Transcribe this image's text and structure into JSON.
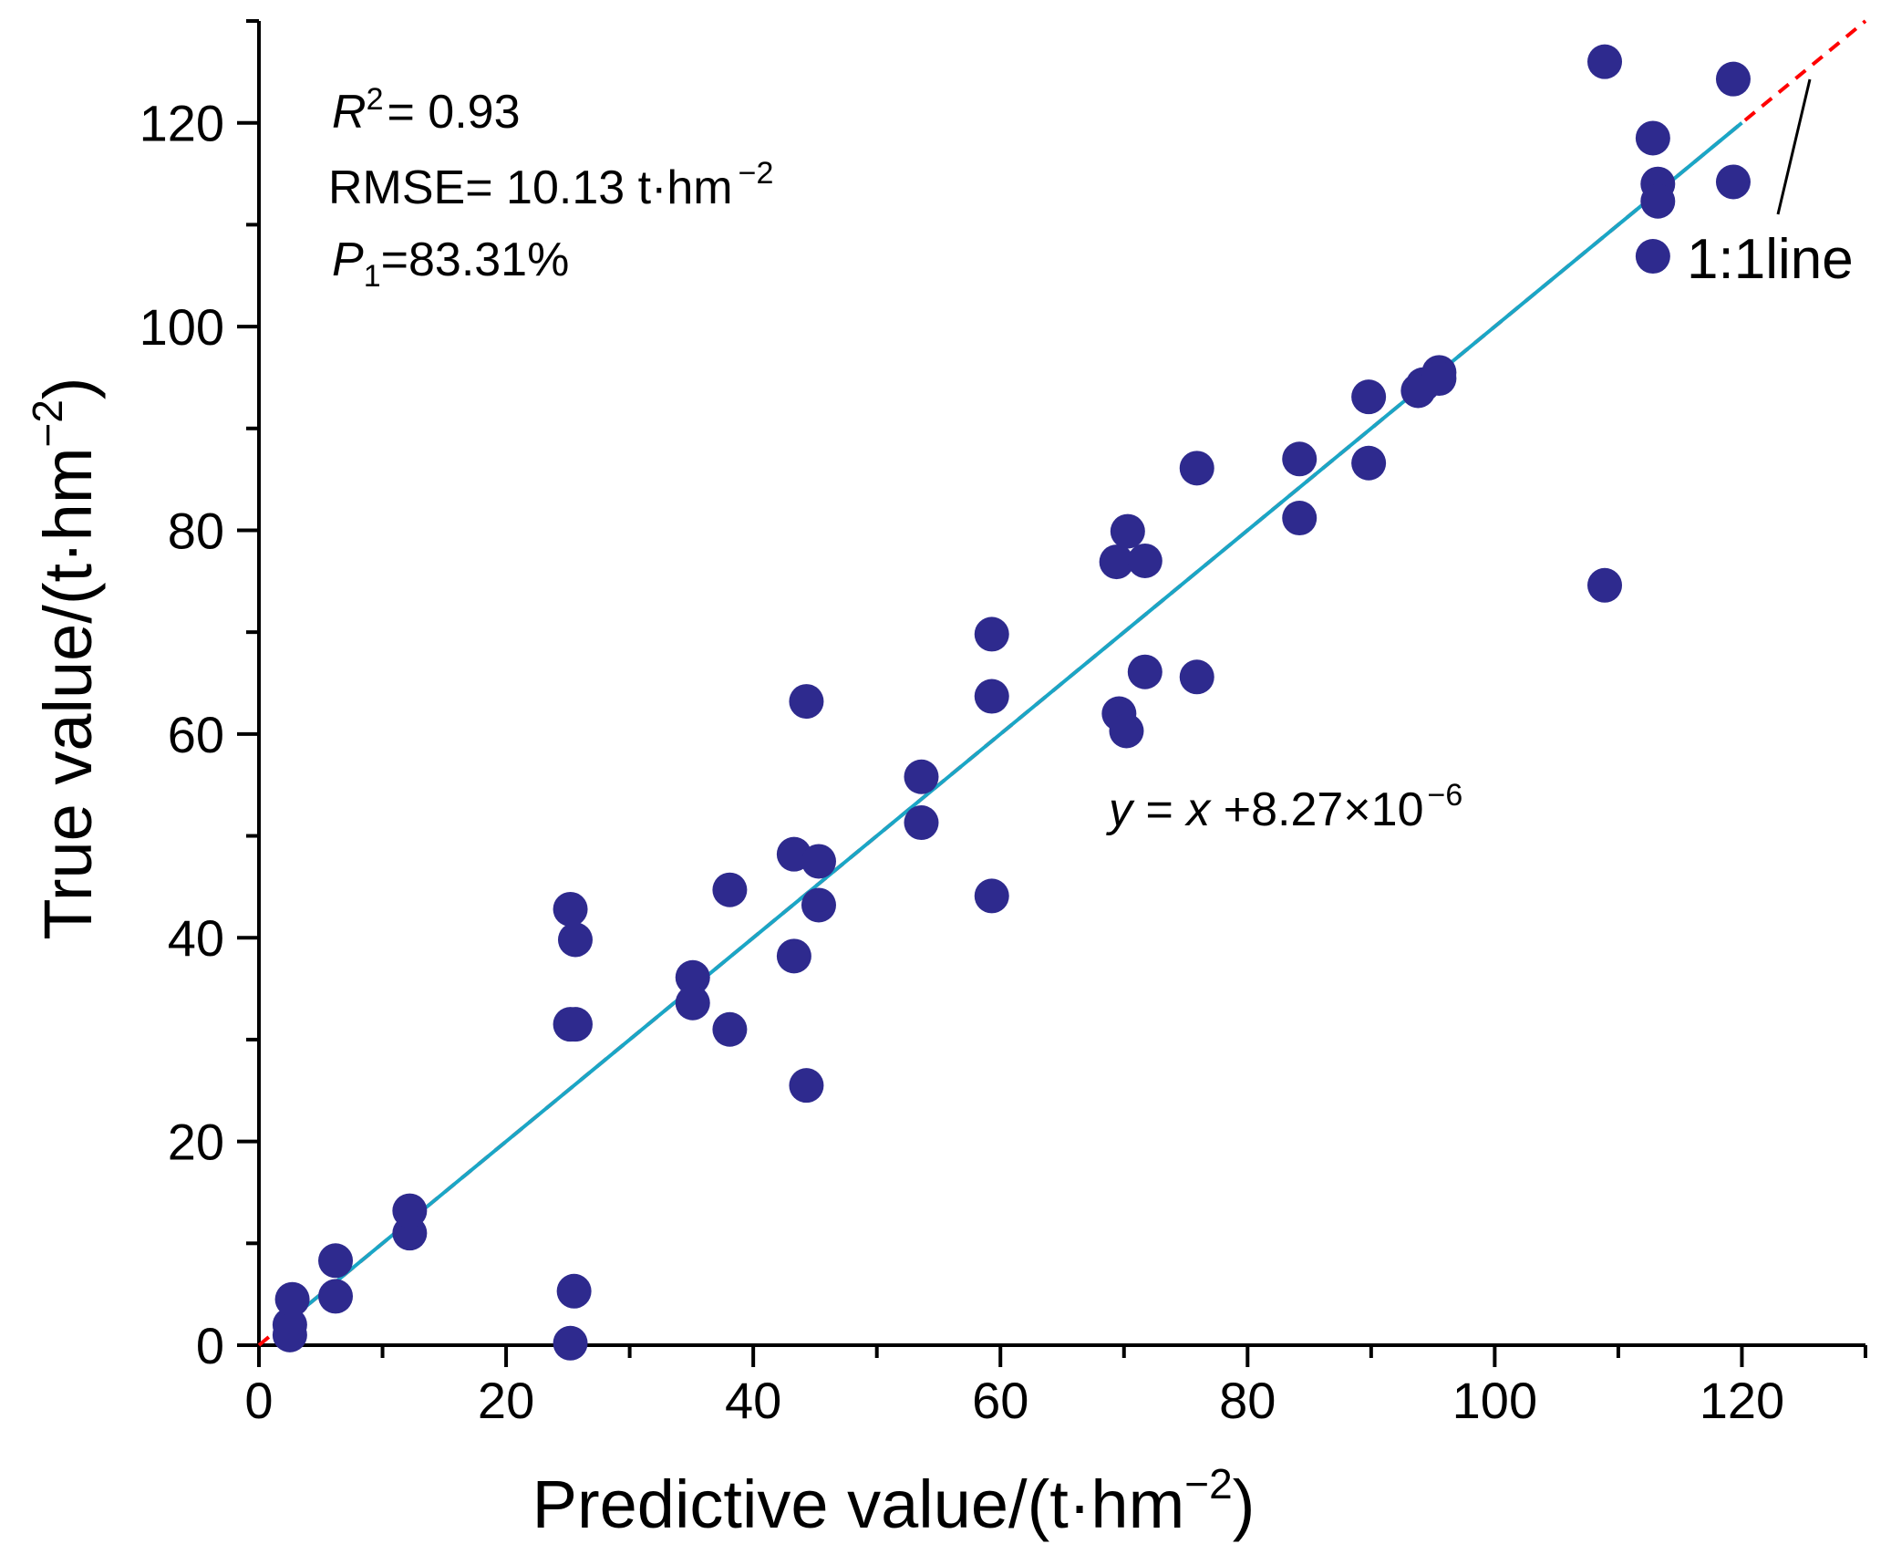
{
  "chart_data": {
    "type": "scatter",
    "xlabel": "Predictive value/(t·hm",
    "xlabel_sup": "−2",
    "xlabel_close": ")",
    "ylabel": "True value/(t·hm",
    "ylabel_sup": "−2",
    "ylabel_close": ")",
    "xlim": [
      0,
      130
    ],
    "ylim": [
      0,
      130
    ],
    "xticks": [
      0,
      20,
      40,
      60,
      80,
      100,
      120
    ],
    "yticks": [
      0,
      20,
      40,
      60,
      80,
      100,
      120
    ],
    "minor_step": 10,
    "stats": {
      "r2_sym": "R",
      "r2_sup": "2",
      "r2_value": "= 0.93",
      "rmse_text": "RMSE= 10.13 t·hm",
      "rmse_sup": "−2",
      "p1_sym": "P",
      "p1_sub": "1",
      "p1_value": "=83.31%"
    },
    "equation": {
      "y": "y",
      "eq": " = ",
      "x": "x",
      "rest": " +8.27×10",
      "sup": "−6"
    },
    "fit_line": {
      "from": [
        1.5,
        1.5
      ],
      "to": [
        120,
        120
      ],
      "color": "#1aa6c6"
    },
    "identity_line": {
      "from": [
        0,
        0
      ],
      "to": [
        130,
        130
      ],
      "color": "#ff0000",
      "label": "1:1line"
    },
    "marker_color": "#2e2a8e",
    "points": [
      [
        2.5,
        1.0
      ],
      [
        2.5,
        2.0
      ],
      [
        2.7,
        4.5
      ],
      [
        6.2,
        4.8
      ],
      [
        6.2,
        8.3
      ],
      [
        12.2,
        11.0
      ],
      [
        12.2,
        13.2
      ],
      [
        25.2,
        0.2
      ],
      [
        25.5,
        5.3
      ],
      [
        25.2,
        31.5
      ],
      [
        25.6,
        31.5
      ],
      [
        25.2,
        42.8
      ],
      [
        25.6,
        39.8
      ],
      [
        35.1,
        36.1
      ],
      [
        35.1,
        33.6
      ],
      [
        38.1,
        44.7
      ],
      [
        38.1,
        31.0
      ],
      [
        43.3,
        48.2
      ],
      [
        45.3,
        47.5
      ],
      [
        45.3,
        43.2
      ],
      [
        43.3,
        38.2
      ],
      [
        44.3,
        63.2
      ],
      [
        44.3,
        25.5
      ],
      [
        53.6,
        55.8
      ],
      [
        53.6,
        51.3
      ],
      [
        59.3,
        69.8
      ],
      [
        59.3,
        63.7
      ],
      [
        59.3,
        44.1
      ],
      [
        69.4,
        76.9
      ],
      [
        70.3,
        79.9
      ],
      [
        71.7,
        77.0
      ],
      [
        71.7,
        66.1
      ],
      [
        69.6,
        62.0
      ],
      [
        70.2,
        60.3
      ],
      [
        75.9,
        86.1
      ],
      [
        75.9,
        65.6
      ],
      [
        84.2,
        87.0
      ],
      [
        84.2,
        81.2
      ],
      [
        89.8,
        93.1
      ],
      [
        89.8,
        86.6
      ],
      [
        93.8,
        93.7
      ],
      [
        94.2,
        94.3
      ],
      [
        95.5,
        95.5
      ],
      [
        95.5,
        94.9
      ],
      [
        108.9,
        126.0
      ],
      [
        108.9,
        74.6
      ],
      [
        112.8,
        118.5
      ],
      [
        113.2,
        114.0
      ],
      [
        113.2,
        112.3
      ],
      [
        112.8,
        106.9
      ],
      [
        119.3,
        124.3
      ],
      [
        119.3,
        114.2
      ]
    ]
  }
}
